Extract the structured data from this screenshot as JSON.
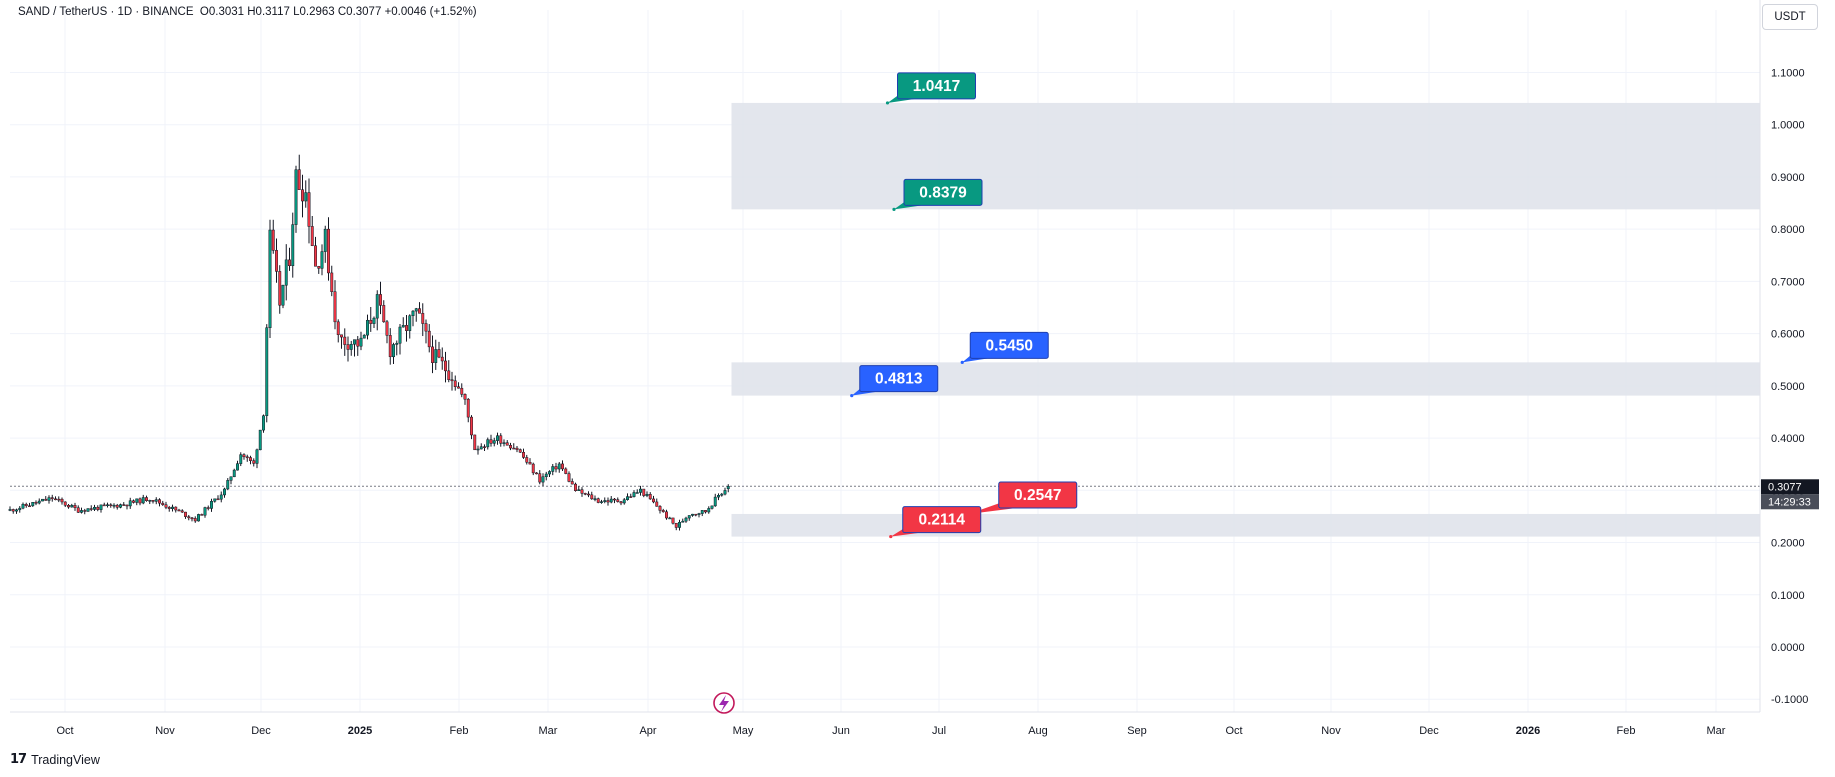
{
  "header": {
    "symbol": "SAND / TetherUS · 1D · BINANCE",
    "open": "O0.3031",
    "high": "H0.3117",
    "low": "L0.2963",
    "close": "C0.3077",
    "change": "+0.0046 (+1.52%)"
  },
  "currency_button": "USDT",
  "footer": {
    "brand": "TradingView",
    "logo_icon": "tradingview-logo-icon"
  },
  "price_label": {
    "value": "0.3077",
    "countdown": "14:29:33"
  },
  "colors": {
    "up": "#089981",
    "down": "#f23645",
    "zone_fill": "#e0e3eb",
    "label_green": "#089981",
    "label_blue": "#2962ff",
    "label_red": "#f23645",
    "price_tag": "#131722"
  },
  "chart_data": {
    "type": "candlestick",
    "symbol": "SAND / TetherUS",
    "interval": "1D",
    "exchange": "BINANCE",
    "x_axis_ticks": [
      "Oct",
      "Nov",
      "Dec",
      "2025",
      "Feb",
      "Mar",
      "Apr",
      "May",
      "Jun",
      "Jul",
      "Aug",
      "Sep",
      "Oct",
      "Nov",
      "Dec",
      "2026",
      "Feb",
      "Mar"
    ],
    "y_axis_ticks": [
      "1.1000",
      "1.0000",
      "0.9000",
      "0.8000",
      "0.7000",
      "0.6000",
      "0.5000",
      "0.4000",
      "0.3000",
      "0.2000",
      "0.1000",
      "0.0000",
      "-0.1000"
    ],
    "ylim": [
      -0.1,
      1.1
    ],
    "grid": true,
    "start_date": "2024-09-15",
    "last_close": 0.3077,
    "close_path": [
      [
        "2024-09-15",
        0.262
      ],
      [
        "2024-09-28",
        0.285
      ],
      [
        "2024-10-06",
        0.262
      ],
      [
        "2024-10-20",
        0.273
      ],
      [
        "2024-10-28",
        0.285
      ],
      [
        "2024-11-05",
        0.262
      ],
      [
        "2024-11-11",
        0.244
      ],
      [
        "2024-11-20",
        0.3
      ],
      [
        "2024-11-25",
        0.37
      ],
      [
        "2024-11-29",
        0.35
      ],
      [
        "2024-12-02",
        0.45
      ],
      [
        "2024-12-04",
        0.78
      ],
      [
        "2024-12-07",
        0.66
      ],
      [
        "2024-12-10",
        0.75
      ],
      [
        "2024-12-12",
        0.9
      ],
      [
        "2024-12-15",
        0.87
      ],
      [
        "2024-12-18",
        0.73
      ],
      [
        "2024-12-21",
        0.78
      ],
      [
        "2024-12-25",
        0.59
      ],
      [
        "2025-01-01",
        0.58
      ],
      [
        "2025-01-06",
        0.66
      ],
      [
        "2025-01-10",
        0.57
      ],
      [
        "2025-01-18",
        0.64
      ],
      [
        "2025-01-23",
        0.56
      ],
      [
        "2025-01-29",
        0.52
      ],
      [
        "2025-02-02",
        0.47
      ],
      [
        "2025-02-05",
        0.38
      ],
      [
        "2025-02-12",
        0.4
      ],
      [
        "2025-02-18",
        0.38
      ],
      [
        "2025-02-25",
        0.32
      ],
      [
        "2025-03-03",
        0.35
      ],
      [
        "2025-03-08",
        0.3
      ],
      [
        "2025-03-15",
        0.28
      ],
      [
        "2025-03-22",
        0.28
      ],
      [
        "2025-03-28",
        0.3
      ],
      [
        "2025-04-02",
        0.27
      ],
      [
        "2025-04-08",
        0.23
      ],
      [
        "2025-04-12",
        0.255
      ],
      [
        "2025-04-17",
        0.26
      ],
      [
        "2025-04-21",
        0.29
      ],
      [
        "2025-04-24",
        0.3077
      ]
    ],
    "zones": [
      {
        "low": 0.8379,
        "high": 1.0417,
        "start": "2025-04-25",
        "end": "2026-03-31"
      },
      {
        "low": 0.4813,
        "high": 0.545,
        "start": "2025-04-25",
        "end": "2026-03-31"
      },
      {
        "low": 0.2114,
        "high": 0.2547,
        "start": "2025-04-25",
        "end": "2026-03-31"
      }
    ],
    "labels": [
      {
        "text": "1.0417",
        "color": "green",
        "anchor_date": "2025-06-12",
        "anchor_price": 1.0417
      },
      {
        "text": "0.8379",
        "color": "green",
        "anchor_date": "2025-06-14",
        "anchor_price": 0.8379
      },
      {
        "text": "0.5450",
        "color": "blue",
        "anchor_date": "2025-07-05",
        "anchor_price": 0.545
      },
      {
        "text": "0.4813",
        "color": "blue",
        "anchor_date": "2025-06-01",
        "anchor_price": 0.4813
      },
      {
        "text": "0.2547",
        "color": "red",
        "anchor_date": "2025-07-07",
        "anchor_price": 0.2547
      },
      {
        "text": "0.2114",
        "color": "red",
        "anchor_date": "2025-06-13",
        "anchor_price": 0.2114
      }
    ]
  }
}
